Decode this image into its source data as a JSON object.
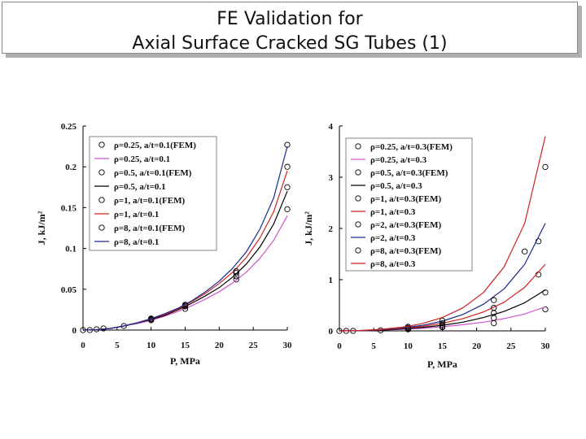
{
  "slide": {
    "title_line1": "FE Validation for",
    "title_line2": "Axial Surface Cracked SG Tubes (1)"
  },
  "chart_data": [
    {
      "type": "scatter",
      "xlabel": "P, MPa",
      "ylabel": "J, kJ/m²",
      "xlim": [
        0,
        30
      ],
      "ylim": [
        0,
        0.25
      ],
      "xticks": [
        "0",
        "5",
        "10",
        "15",
        "20",
        "25",
        "30"
      ],
      "yticks": [
        "0",
        "0.05",
        "0.1",
        "0.15",
        "0.2",
        "0.25"
      ],
      "legend_position": "top-left",
      "grid": false,
      "series": [
        {
          "name": "ρ=0.25, a/t=0.1(FEM)",
          "kind": "markers",
          "color": "#000000",
          "x": [
            0,
            1,
            2,
            3,
            6,
            10,
            15,
            22.5,
            30
          ],
          "y": [
            0,
            0,
            0.001,
            0.002,
            0.005,
            0.012,
            0.026,
            0.062,
            0.148
          ]
        },
        {
          "name": "ρ=0.25, a/t=0.1",
          "kind": "line",
          "color": "#cc55cc",
          "x": [
            0,
            2,
            4,
            6,
            8,
            10,
            12,
            14,
            16,
            18,
            20,
            22,
            24,
            26,
            28,
            30
          ],
          "y": [
            0,
            0.0005,
            0.002,
            0.005,
            0.008,
            0.012,
            0.017,
            0.023,
            0.03,
            0.038,
            0.047,
            0.058,
            0.071,
            0.088,
            0.11,
            0.14
          ]
        },
        {
          "name": "ρ=0.5, a/t=0.1(FEM)",
          "kind": "markers",
          "color": "#000000",
          "x": [
            10,
            15,
            22.5,
            30
          ],
          "y": [
            0.013,
            0.029,
            0.066,
            0.175
          ]
        },
        {
          "name": "ρ=0.5, a/t=0.1",
          "kind": "line",
          "color": "#000000",
          "x": [
            0,
            2,
            4,
            6,
            8,
            10,
            12,
            14,
            16,
            18,
            20,
            22,
            24,
            26,
            28,
            30
          ],
          "y": [
            0,
            0.0005,
            0.002,
            0.005,
            0.009,
            0.013,
            0.018,
            0.025,
            0.033,
            0.042,
            0.052,
            0.065,
            0.081,
            0.102,
            0.13,
            0.17
          ]
        },
        {
          "name": "ρ=1, a/t=0.1(FEM)",
          "kind": "markers",
          "color": "#000000",
          "x": [
            10,
            15,
            22.5,
            30
          ],
          "y": [
            0.014,
            0.03,
            0.07,
            0.2
          ]
        },
        {
          "name": "ρ=1, a/t=0.1",
          "kind": "line",
          "color": "#cc2222",
          "x": [
            0,
            2,
            4,
            6,
            8,
            10,
            12,
            14,
            16,
            18,
            20,
            22,
            24,
            26,
            28,
            30
          ],
          "y": [
            0,
            0.0005,
            0.002,
            0.005,
            0.009,
            0.014,
            0.019,
            0.026,
            0.035,
            0.045,
            0.057,
            0.071,
            0.089,
            0.113,
            0.145,
            0.195
          ]
        },
        {
          "name": "ρ=8, a/t=0.1(FEM)",
          "kind": "markers",
          "color": "#000000",
          "x": [
            10,
            15,
            22.5,
            30
          ],
          "y": [
            0.014,
            0.031,
            0.072,
            0.227
          ]
        },
        {
          "name": "ρ=8, a/t=0.1",
          "kind": "line",
          "color": "#1a2a8a",
          "x": [
            0,
            2,
            4,
            6,
            8,
            10,
            12,
            14,
            16,
            18,
            20,
            22,
            24,
            26,
            28,
            30
          ],
          "y": [
            0,
            0.0005,
            0.002,
            0.005,
            0.009,
            0.014,
            0.02,
            0.027,
            0.036,
            0.047,
            0.06,
            0.076,
            0.096,
            0.124,
            0.162,
            0.225
          ]
        }
      ]
    },
    {
      "type": "scatter",
      "xlabel": "P, MPa",
      "ylabel": "J, kJ/m²",
      "xlim": [
        0,
        30
      ],
      "ylim": [
        0,
        4
      ],
      "xticks": [
        "0",
        "5",
        "10",
        "15",
        "20",
        "25",
        "30"
      ],
      "yticks": [
        "0",
        "1",
        "2",
        "3",
        "4"
      ],
      "legend_position": "top-left",
      "grid": false,
      "series": [
        {
          "name": "ρ=0.25, a/t=0.3(FEM)",
          "kind": "markers",
          "color": "#000000",
          "x": [
            0,
            1,
            2,
            6,
            10,
            15,
            22.5,
            30
          ],
          "y": [
            0,
            0,
            0,
            0.01,
            0.03,
            0.07,
            0.15,
            0.42
          ]
        },
        {
          "name": "ρ=0.25, a/t=0.3",
          "kind": "line",
          "color": "#cc55cc",
          "x": [
            0,
            3,
            6,
            9,
            12,
            15,
            18,
            21,
            24,
            27,
            30
          ],
          "y": [
            0,
            0.003,
            0.012,
            0.028,
            0.05,
            0.08,
            0.12,
            0.17,
            0.24,
            0.33,
            0.47
          ]
        },
        {
          "name": "ρ=0.5, a/t=0.3(FEM)",
          "kind": "markers",
          "color": "#000000",
          "x": [
            10,
            15,
            22.5,
            30
          ],
          "y": [
            0.04,
            0.09,
            0.25,
            0.75
          ]
        },
        {
          "name": "ρ=0.5, a/t=0.3",
          "kind": "line",
          "color": "#000000",
          "x": [
            0,
            3,
            6,
            9,
            12,
            15,
            18,
            21,
            24,
            27,
            30
          ],
          "y": [
            0,
            0.004,
            0.015,
            0.035,
            0.065,
            0.11,
            0.17,
            0.26,
            0.38,
            0.55,
            0.8
          ]
        },
        {
          "name": "ρ=1, a/t=0.3(FEM)",
          "kind": "markers",
          "color": "#000000",
          "x": [
            10,
            15,
            22.5,
            29
          ],
          "y": [
            0.05,
            0.12,
            0.35,
            1.1
          ]
        },
        {
          "name": "ρ=1, a/t=0.3",
          "kind": "line",
          "color": "#cc2222",
          "x": [
            0,
            3,
            6,
            9,
            12,
            15,
            18,
            21,
            24,
            27,
            30
          ],
          "y": [
            0,
            0.005,
            0.02,
            0.045,
            0.085,
            0.15,
            0.24,
            0.37,
            0.56,
            0.85,
            1.3
          ]
        },
        {
          "name": "ρ=2, a/t=0.3(FEM)",
          "kind": "markers",
          "color": "#000000",
          "x": [
            10,
            15,
            22.5,
            27,
            29
          ],
          "y": [
            0.06,
            0.15,
            0.45,
            1.55,
            1.75
          ]
        },
        {
          "name": "ρ=2, a/t=0.3",
          "kind": "line",
          "color": "#1a2a8a",
          "x": [
            0,
            3,
            6,
            9,
            12,
            15,
            18,
            21,
            24,
            27,
            30
          ],
          "y": [
            0,
            0.006,
            0.025,
            0.055,
            0.105,
            0.19,
            0.32,
            0.52,
            0.82,
            1.3,
            2.1
          ]
        },
        {
          "name": "ρ=8, a/t=0.3(FEM)",
          "kind": "markers",
          "color": "#000000",
          "x": [
            10,
            15,
            22.5,
            30
          ],
          "y": [
            0.08,
            0.2,
            0.6,
            3.2
          ]
        },
        {
          "name": "ρ=8, a/t=0.3",
          "kind": "line",
          "color": "#cc2222",
          "x": [
            0,
            3,
            6,
            9,
            12,
            15,
            18,
            21,
            24,
            27,
            30
          ],
          "y": [
            0,
            0.008,
            0.03,
            0.07,
            0.14,
            0.26,
            0.45,
            0.75,
            1.25,
            2.1,
            3.8
          ]
        }
      ]
    }
  ]
}
